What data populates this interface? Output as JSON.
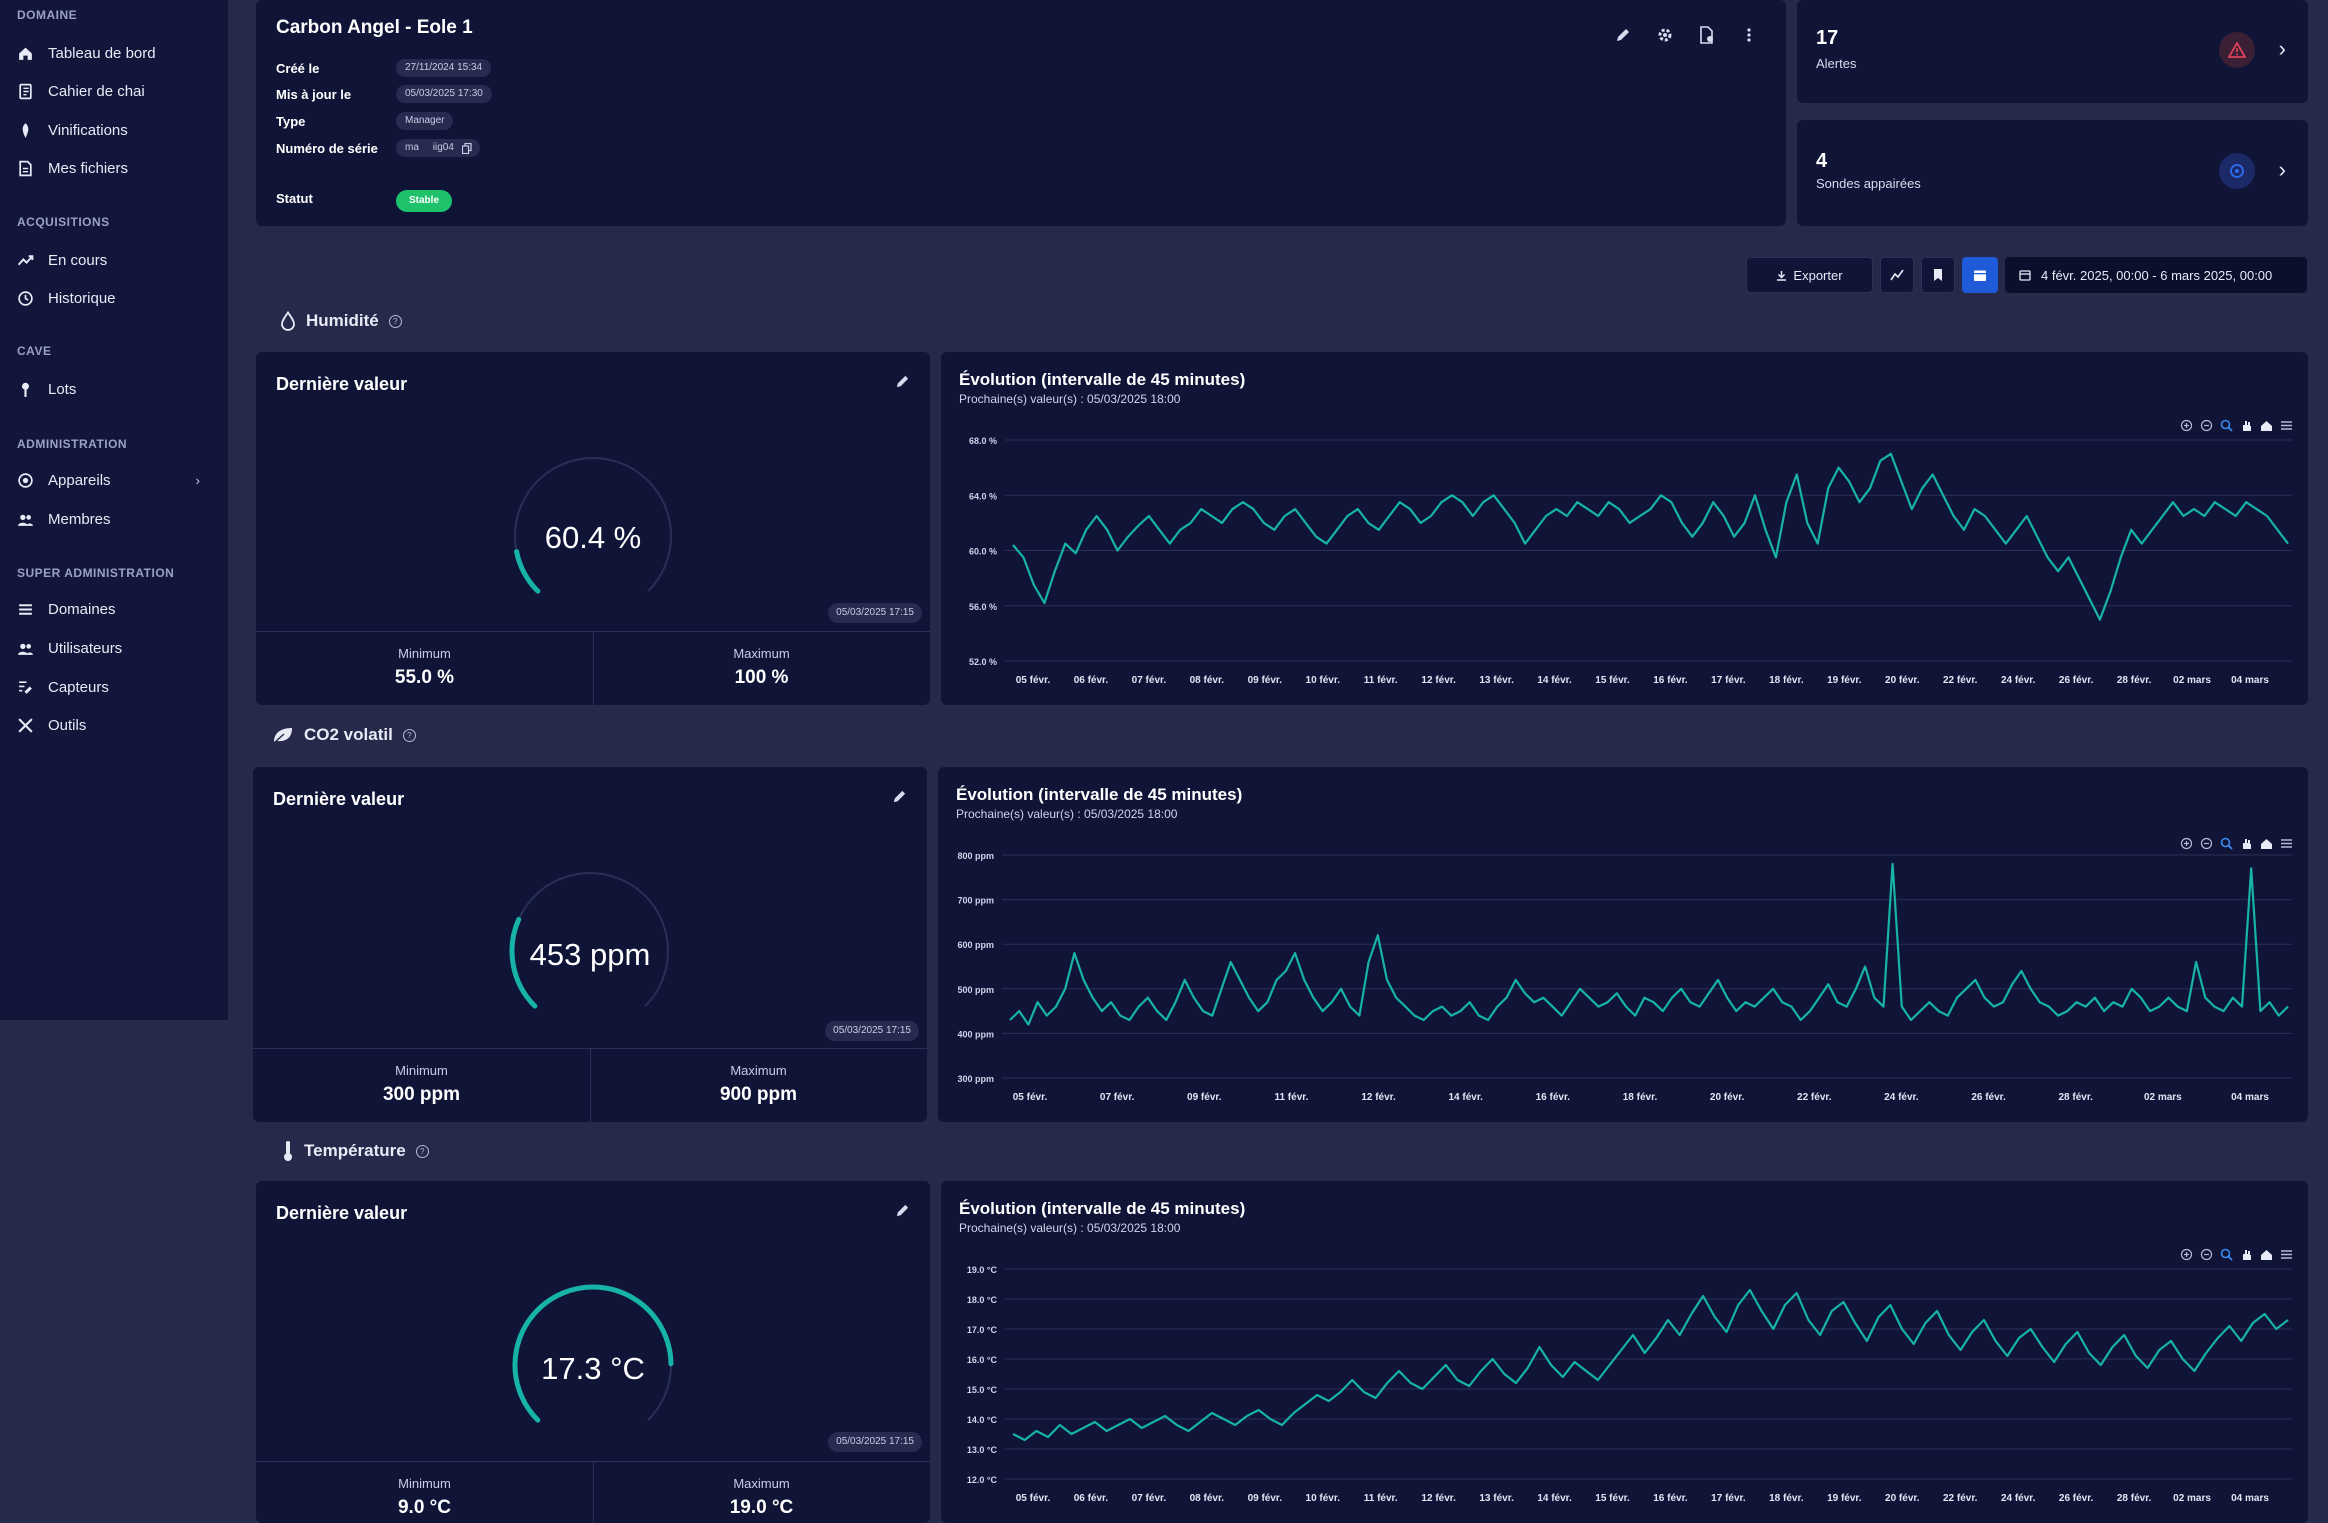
{
  "sidebar": {
    "sections": [
      {
        "title": "DOMAINE",
        "items": [
          {
            "label": "Tableau de bord",
            "icon": "home-icon"
          },
          {
            "label": "Cahier de chai",
            "icon": "notebook-icon"
          },
          {
            "label": "Vinifications",
            "icon": "grape-icon"
          },
          {
            "label": "Mes fichiers",
            "icon": "files-icon"
          }
        ]
      },
      {
        "title": "ACQUISITIONS",
        "items": [
          {
            "label": "En cours",
            "icon": "trend-icon"
          },
          {
            "label": "Historique",
            "icon": "history-icon"
          }
        ]
      },
      {
        "title": "CAVE",
        "items": [
          {
            "label": "Lots",
            "icon": "pin-icon"
          }
        ]
      },
      {
        "title": "ADMINISTRATION",
        "items": [
          {
            "label": "Appareils",
            "icon": "device-icon",
            "chevron": "›"
          },
          {
            "label": "Membres",
            "icon": "members-icon"
          }
        ]
      },
      {
        "title": "SUPER ADMINISTRATION",
        "items": [
          {
            "label": "Domaines",
            "icon": "list-icon"
          },
          {
            "label": "Utilisateurs",
            "icon": "users-icon"
          },
          {
            "label": "Capteurs",
            "icon": "sensor-icon"
          },
          {
            "label": "Outils",
            "icon": "tools-icon"
          }
        ]
      }
    ]
  },
  "device": {
    "title": "Carbon Angel - Eole 1",
    "created_label": "Créé le",
    "created_value": "27/11/2024 15:34",
    "updated_label": "Mis à jour le",
    "updated_value": "05/03/2025 17:30",
    "type_label": "Type",
    "type_value": "Manager",
    "serial_label": "Numéro de série",
    "serial_value": "ma     iig04",
    "status_label": "Statut",
    "status_value": "Stable"
  },
  "stats": {
    "alerts_count": "17",
    "alerts_label": "Alertes",
    "probes_count": "4",
    "probes_label": "Sondes appairées"
  },
  "toolbar": {
    "export_label": "Exporter",
    "date_range": "4 févr. 2025, 00:00 - 6 mars 2025, 00:00"
  },
  "sections": [
    {
      "name": "Humidité",
      "icon": "droplet-icon",
      "gauge": {
        "title": "Dernière valeur",
        "value": "60.4 %",
        "fraction": 0.124,
        "time": "05/03/2025 17:15",
        "min_label": "Minimum",
        "min": "55.0 %",
        "max_label": "Maximum",
        "max": "100 %"
      },
      "chart": {
        "title": "Évolution (intervalle de 45 minutes)",
        "subtitle": "Prochaine(s) valeur(s) : 05/03/2025 18:00"
      }
    },
    {
      "name": "CO2 volatil",
      "icon": "leaf-icon",
      "gauge": {
        "title": "Dernière valeur",
        "value": "453 ppm",
        "fraction": 0.255,
        "time": "05/03/2025 17:15",
        "min_label": "Minimum",
        "min": "300 ppm",
        "max_label": "Maximum",
        "max": "900 ppm"
      },
      "chart": {
        "title": "Évolution (intervalle de 45 minutes)",
        "subtitle": "Prochaine(s) valeur(s) : 05/03/2025 18:00"
      }
    },
    {
      "name": "Température",
      "icon": "thermometer-icon",
      "gauge": {
        "title": "Dernière valeur",
        "value": "17.3 °C",
        "fraction": 0.83,
        "time": "05/03/2025 17:15",
        "min_label": "Minimum",
        "min": "9.0 °C",
        "max_label": "Maximum",
        "max": "19.0 °C"
      },
      "chart": {
        "title": "Évolution (intervalle de 45 minutes)",
        "subtitle": "Prochaine(s) valeur(s) : 05/03/2025 18:00"
      }
    }
  ],
  "colors": {
    "accent": "#17b3a8",
    "alert": "#e0405a",
    "probe": "#2f6cf0",
    "status": "#1fc16b"
  },
  "chart_data": [
    {
      "type": "line",
      "series": [
        {
          "values": [
            60.4,
            59.5,
            57.5,
            56.2,
            58.5,
            60.5,
            59.8,
            61.5,
            62.5,
            61.5,
            60.0,
            61.0,
            61.8,
            62.5,
            61.5,
            60.5,
            61.5,
            62.0,
            63.0,
            62.5,
            62.0,
            63.0,
            63.5,
            63.0,
            62.0,
            61.5,
            62.5,
            63.0,
            62.0,
            61.0,
            60.5,
            61.5,
            62.5,
            63.0,
            62.0,
            61.5,
            62.5,
            63.5,
            63.0,
            62.0,
            62.5,
            63.5,
            64.0,
            63.5,
            62.5,
            63.5,
            64.0,
            63.0,
            62.0,
            60.5,
            61.5,
            62.5,
            63.0,
            62.5,
            63.5,
            63.0,
            62.5,
            63.5,
            63.0,
            62.0,
            62.5,
            63.0,
            64.0,
            63.5,
            62.0,
            61.0,
            62.0,
            63.5,
            62.5,
            61.0,
            62.0,
            64.0,
            61.5,
            59.5,
            63.5,
            65.5,
            62.0,
            60.5,
            64.5,
            66.0,
            65.0,
            63.5,
            64.5,
            66.5,
            67.0,
            65.0,
            63.0,
            64.5,
            65.5,
            64.0,
            62.5,
            61.5,
            63.0,
            62.5,
            61.5,
            60.5,
            61.5,
            62.5,
            61.0,
            59.5,
            58.5,
            59.5,
            58.0,
            56.5,
            55.0,
            57.0,
            59.5,
            61.5,
            60.5,
            61.5,
            62.5,
            63.5,
            62.5,
            63.0,
            62.5,
            63.5,
            63.0,
            62.5,
            63.5,
            63.0,
            62.5,
            61.5,
            60.5
          ],
          "markers": false
        }
      ],
      "x_tick_labels": [
        "05 févr.",
        "06 févr.",
        "07 févr.",
        "08 févr.",
        "09 févr.",
        "10 févr.",
        "11 févr.",
        "12 févr.",
        "13 févr.",
        "14 févr.",
        "15 févr.",
        "16 févr.",
        "17 févr.",
        "18 févr.",
        "19 févr.",
        "20 févr.",
        "22 févr.",
        "24 févr.",
        "26 févr.",
        "28 févr.",
        "02 mars",
        "04 mars"
      ],
      "y_tick_labels": [
        "68.0 %",
        "64.0 %",
        "60.0 %",
        "56.0 %",
        "52.0 %"
      ],
      "ylim": [
        52,
        68
      ],
      "grid": true,
      "color": "#17b3a8"
    },
    {
      "type": "line",
      "series": [
        {
          "values": [
            430,
            450,
            420,
            470,
            440,
            460,
            500,
            580,
            520,
            480,
            450,
            470,
            440,
            430,
            460,
            480,
            450,
            430,
            470,
            520,
            480,
            450,
            440,
            500,
            560,
            520,
            480,
            450,
            470,
            520,
            540,
            580,
            520,
            480,
            450,
            470,
            500,
            460,
            440,
            560,
            620,
            520,
            480,
            460,
            440,
            430,
            450,
            460,
            440,
            450,
            470,
            440,
            430,
            460,
            480,
            520,
            490,
            470,
            480,
            460,
            440,
            470,
            500,
            480,
            460,
            470,
            490,
            460,
            440,
            480,
            470,
            450,
            480,
            500,
            470,
            460,
            490,
            520,
            480,
            450,
            470,
            460,
            480,
            500,
            470,
            460,
            430,
            450,
            480,
            510,
            470,
            460,
            500,
            550,
            480,
            460,
            780,
            460,
            430,
            450,
            470,
            450,
            440,
            480,
            500,
            520,
            480,
            460,
            470,
            510,
            540,
            500,
            470,
            460,
            440,
            450,
            470,
            460,
            480,
            450,
            470,
            460,
            500,
            480,
            450,
            460,
            480,
            460,
            450,
            560,
            480,
            460,
            450,
            480,
            460,
            770,
            450,
            470,
            440,
            460
          ],
          "markers": false
        }
      ],
      "x_tick_labels": [
        "05 févr.",
        "07 févr.",
        "09 févr.",
        "11 févr.",
        "12 févr.",
        "14 févr.",
        "16 févr.",
        "18 févr.",
        "20 févr.",
        "22 févr.",
        "24 févr.",
        "26 févr.",
        "28 févr.",
        "02 mars",
        "04 mars"
      ],
      "y_tick_labels": [
        "800 ppm",
        "700 ppm",
        "600 ppm",
        "500 ppm",
        "400 ppm",
        "300 ppm"
      ],
      "ylim": [
        300,
        800
      ],
      "grid": true,
      "color": "#17b3a8"
    },
    {
      "type": "line",
      "series": [
        {
          "values": [
            13.5,
            13.3,
            13.6,
            13.4,
            13.8,
            13.5,
            13.7,
            13.9,
            13.6,
            13.8,
            14.0,
            13.7,
            13.9,
            14.1,
            13.8,
            13.6,
            13.9,
            14.2,
            14.0,
            13.8,
            14.1,
            14.3,
            14.0,
            13.8,
            14.2,
            14.5,
            14.8,
            14.6,
            14.9,
            15.3,
            14.9,
            14.7,
            15.2,
            15.6,
            15.2,
            15.0,
            15.4,
            15.8,
            15.3,
            15.1,
            15.6,
            16.0,
            15.5,
            15.2,
            15.7,
            16.4,
            15.8,
            15.4,
            15.9,
            15.6,
            15.3,
            15.8,
            16.3,
            16.8,
            16.2,
            16.7,
            17.3,
            16.8,
            17.5,
            18.1,
            17.4,
            16.9,
            17.8,
            18.3,
            17.6,
            17.0,
            17.8,
            18.2,
            17.3,
            16.8,
            17.6,
            17.9,
            17.2,
            16.6,
            17.4,
            17.8,
            17.0,
            16.5,
            17.2,
            17.6,
            16.8,
            16.3,
            16.9,
            17.3,
            16.6,
            16.1,
            16.7,
            17.0,
            16.4,
            15.9,
            16.5,
            16.9,
            16.2,
            15.8,
            16.4,
            16.8,
            16.1,
            15.7,
            16.3,
            16.6,
            16.0,
            15.6,
            16.2,
            16.7,
            17.1,
            16.6,
            17.2,
            17.5,
            17.0,
            17.3
          ],
          "markers": false
        }
      ],
      "x_tick_labels": [
        "05 févr.",
        "06 févr.",
        "07 févr.",
        "08 févr.",
        "09 févr.",
        "10 févr.",
        "11 févr.",
        "12 févr.",
        "13 févr.",
        "14 févr.",
        "15 févr.",
        "16 févr.",
        "17 févr.",
        "18 févr.",
        "19 févr.",
        "20 févr.",
        "22 févr.",
        "24 févr.",
        "26 févr.",
        "28 févr.",
        "02 mars",
        "04 mars"
      ],
      "y_tick_labels": [
        "19.0 °C",
        "18.0 °C",
        "17.0 °C",
        "16.0 °C",
        "15.0 °C",
        "14.0 °C",
        "13.0 °C",
        "12.0 °C"
      ],
      "ylim": [
        12,
        19
      ],
      "grid": true,
      "color": "#17b3a8"
    }
  ]
}
